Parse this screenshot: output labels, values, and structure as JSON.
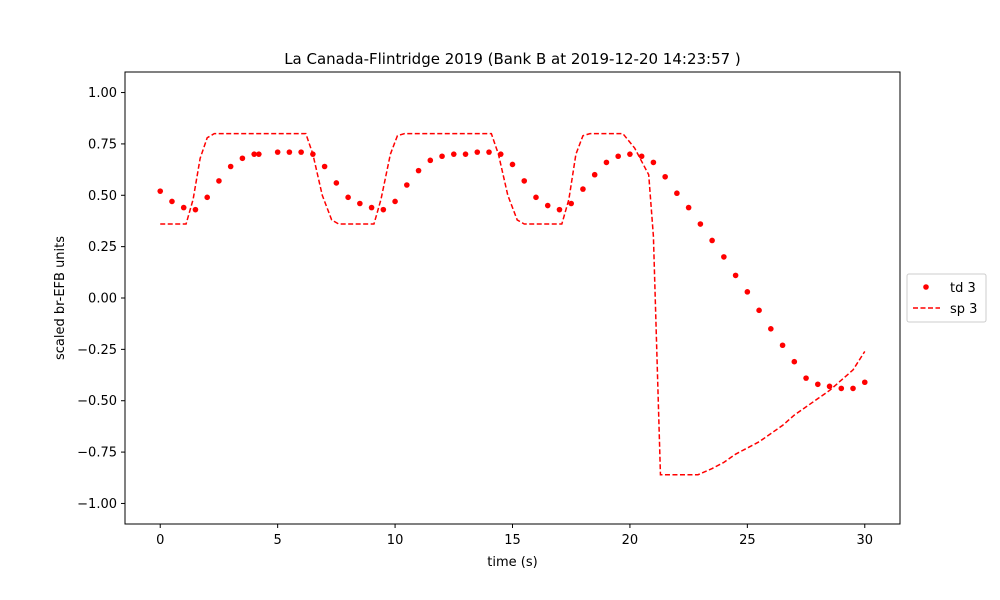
{
  "chart_data": {
    "type": "line",
    "title": "La Canada-Flintridge 2019 (Bank B at 2019-12-20 14:23:57 )",
    "xlabel": "time (s)",
    "ylabel": "scaled br-EFB units",
    "xlim": [
      -1.5,
      31.5
    ],
    "ylim": [
      -1.1,
      1.1
    ],
    "xticks": [
      0,
      5,
      10,
      15,
      20,
      25,
      30
    ],
    "xtick_labels": [
      "0",
      "5",
      "10",
      "15",
      "20",
      "25",
      "30"
    ],
    "yticks": [
      -1.0,
      -0.75,
      -0.5,
      -0.25,
      0.0,
      0.25,
      0.5,
      0.75,
      1.0
    ],
    "ytick_labels": [
      "−1.00",
      "−0.75",
      "−0.50",
      "−0.25",
      "0.00",
      "0.25",
      "0.50",
      "0.75",
      "1.00"
    ],
    "grid": false,
    "legend_position": "right-outside",
    "series": [
      {
        "name": "td 3",
        "style": "dots",
        "color": "#ff0000",
        "points": [
          [
            0.0,
            0.52
          ],
          [
            0.5,
            0.47
          ],
          [
            1.0,
            0.44
          ],
          [
            1.5,
            0.43
          ],
          [
            2.0,
            0.49
          ],
          [
            2.5,
            0.57
          ],
          [
            3.0,
            0.64
          ],
          [
            3.5,
            0.68
          ],
          [
            4.0,
            0.7
          ],
          [
            4.2,
            0.7
          ],
          [
            5.0,
            0.71
          ],
          [
            5.5,
            0.71
          ],
          [
            6.0,
            0.71
          ],
          [
            6.5,
            0.7
          ],
          [
            7.0,
            0.64
          ],
          [
            7.5,
            0.56
          ],
          [
            8.0,
            0.49
          ],
          [
            8.5,
            0.46
          ],
          [
            9.0,
            0.44
          ],
          [
            9.5,
            0.43
          ],
          [
            10.0,
            0.47
          ],
          [
            10.5,
            0.55
          ],
          [
            11.0,
            0.62
          ],
          [
            11.5,
            0.67
          ],
          [
            12.0,
            0.69
          ],
          [
            12.5,
            0.7
          ],
          [
            13.0,
            0.7
          ],
          [
            13.5,
            0.71
          ],
          [
            14.0,
            0.71
          ],
          [
            14.5,
            0.7
          ],
          [
            15.0,
            0.65
          ],
          [
            15.5,
            0.57
          ],
          [
            16.0,
            0.49
          ],
          [
            16.5,
            0.45
          ],
          [
            17.0,
            0.43
          ],
          [
            17.5,
            0.46
          ],
          [
            18.0,
            0.53
          ],
          [
            18.5,
            0.6
          ],
          [
            19.0,
            0.66
          ],
          [
            19.5,
            0.69
          ],
          [
            20.0,
            0.7
          ],
          [
            20.5,
            0.69
          ],
          [
            21.0,
            0.66
          ],
          [
            21.5,
            0.59
          ],
          [
            22.0,
            0.51
          ],
          [
            22.5,
            0.44
          ],
          [
            23.0,
            0.36
          ],
          [
            23.5,
            0.28
          ],
          [
            24.0,
            0.2
          ],
          [
            24.5,
            0.11
          ],
          [
            25.0,
            0.03
          ],
          [
            25.5,
            -0.06
          ],
          [
            26.0,
            -0.15
          ],
          [
            26.5,
            -0.23
          ],
          [
            27.0,
            -0.31
          ],
          [
            27.5,
            -0.39
          ],
          [
            28.0,
            -0.42
          ],
          [
            28.5,
            -0.43
          ],
          [
            29.0,
            -0.44
          ],
          [
            29.5,
            -0.44
          ],
          [
            30.0,
            -0.41
          ]
        ]
      },
      {
        "name": "sp 3",
        "style": "dashed",
        "color": "#ff0000",
        "points": [
          [
            0.0,
            0.36
          ],
          [
            1.1,
            0.36
          ],
          [
            1.4,
            0.48
          ],
          [
            1.7,
            0.68
          ],
          [
            2.0,
            0.78
          ],
          [
            2.3,
            0.8
          ],
          [
            6.2,
            0.8
          ],
          [
            6.5,
            0.7
          ],
          [
            6.9,
            0.5
          ],
          [
            7.3,
            0.38
          ],
          [
            7.6,
            0.36
          ],
          [
            9.1,
            0.36
          ],
          [
            9.4,
            0.48
          ],
          [
            9.8,
            0.7
          ],
          [
            10.1,
            0.79
          ],
          [
            10.4,
            0.8
          ],
          [
            14.1,
            0.8
          ],
          [
            14.4,
            0.7
          ],
          [
            14.8,
            0.5
          ],
          [
            15.2,
            0.38
          ],
          [
            15.5,
            0.36
          ],
          [
            17.1,
            0.36
          ],
          [
            17.4,
            0.48
          ],
          [
            17.7,
            0.7
          ],
          [
            18.0,
            0.79
          ],
          [
            18.3,
            0.8
          ],
          [
            19.7,
            0.8
          ],
          [
            20.2,
            0.73
          ],
          [
            20.8,
            0.6
          ],
          [
            21.0,
            0.3
          ],
          [
            21.3,
            -0.86
          ],
          [
            22.9,
            -0.86
          ],
          [
            23.5,
            -0.83
          ],
          [
            24.0,
            -0.8
          ],
          [
            24.5,
            -0.76
          ],
          [
            25.0,
            -0.73
          ],
          [
            25.5,
            -0.7
          ],
          [
            26.0,
            -0.66
          ],
          [
            26.5,
            -0.62
          ],
          [
            27.0,
            -0.57
          ],
          [
            27.5,
            -0.53
          ],
          [
            28.0,
            -0.49
          ],
          [
            28.5,
            -0.45
          ],
          [
            29.0,
            -0.4
          ],
          [
            29.5,
            -0.35
          ],
          [
            30.0,
            -0.26
          ]
        ]
      }
    ]
  }
}
